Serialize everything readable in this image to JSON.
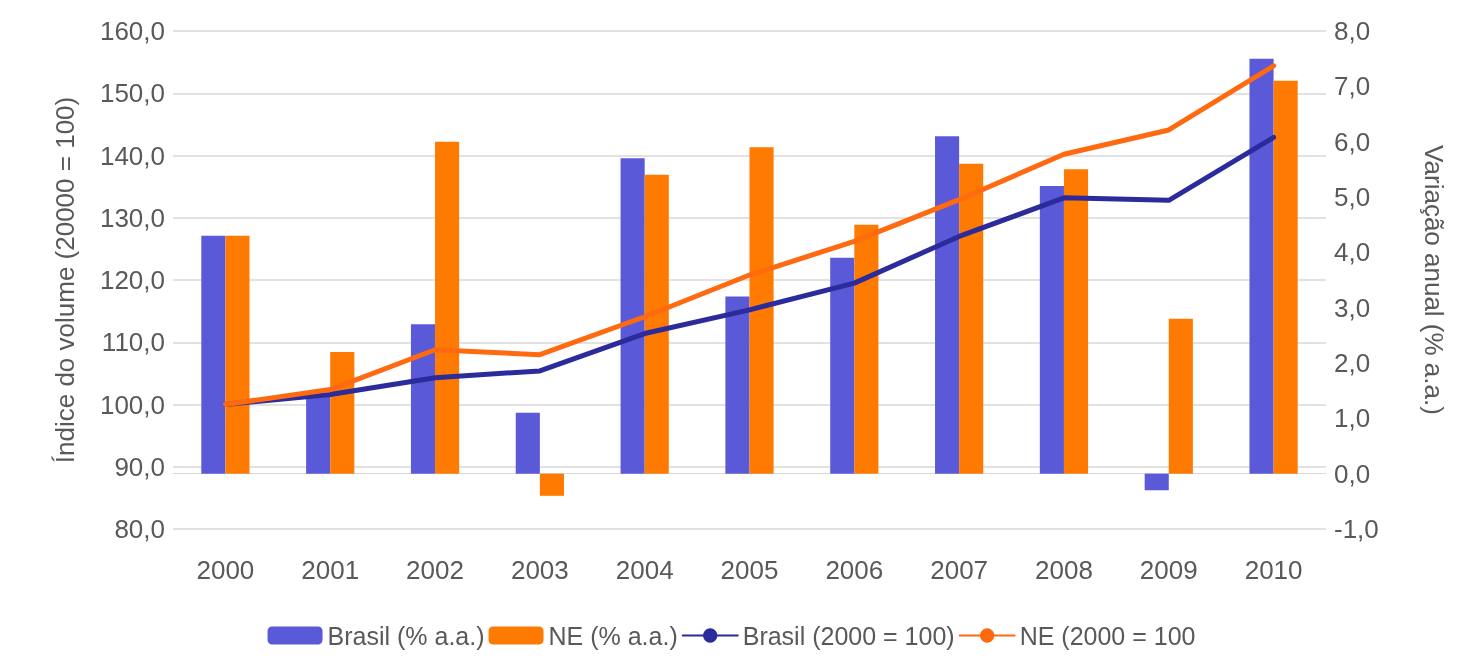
{
  "chart_data": {
    "type": "bar",
    "categories": [
      "2000",
      "2001",
      "2002",
      "2003",
      "2004",
      "2005",
      "2006",
      "2007",
      "2008",
      "2009",
      "2010"
    ],
    "series": [
      {
        "name": "Brasil (% a.a.)",
        "axis": "y2",
        "color": "#5a5ad8",
        "values": [
          4.3,
          1.4,
          2.7,
          1.1,
          5.7,
          3.2,
          3.9,
          6.1,
          5.2,
          -0.3,
          7.5
        ]
      },
      {
        "name": "NE (% a.a.)",
        "axis": "y2",
        "color": "#ff7a00",
        "values": [
          4.3,
          2.2,
          6.0,
          -0.4,
          5.4,
          5.9,
          4.5,
          5.6,
          5.5,
          2.8,
          7.1
        ]
      },
      {
        "name": "Brasil (2000 = 100)",
        "type": "line",
        "axis": "y",
        "color": "#2b2b9c",
        "values": [
          100,
          101.6,
          104.3,
          105.4,
          111.4,
          115.2,
          119.5,
          127.0,
          133.2,
          132.8,
          142.9
        ]
      },
      {
        "name": "NE (2000 = 100",
        "type": "line",
        "axis": "y",
        "color": "#ff6a10",
        "values": [
          100,
          102.4,
          108.8,
          108.0,
          114.1,
          120.8,
          126.2,
          132.9,
          140.2,
          144.1,
          154.4
        ]
      }
    ],
    "ylabel": "Índice do volume (20000 = 100)",
    "y2label": "Variação anual (% a.a.)",
    "ylim": [
      80,
      160
    ],
    "yticks": [
      {
        "value": 80,
        "label": "80,0"
      },
      {
        "value": 90,
        "label": "90,0"
      },
      {
        "value": 100,
        "label": "100,0"
      },
      {
        "value": 110,
        "label": "110,0"
      },
      {
        "value": 120,
        "label": "120,0"
      },
      {
        "value": 130,
        "label": "130,0"
      },
      {
        "value": 140,
        "label": "140,0"
      },
      {
        "value": 150,
        "label": "150,0"
      },
      {
        "value": 160,
        "label": "160,0"
      }
    ],
    "y2lim": [
      -1,
      8
    ],
    "y2ticks": [
      {
        "value": -1,
        "label": "-1,0"
      },
      {
        "value": 0,
        "label": "0,0"
      },
      {
        "value": 1,
        "label": "1,0"
      },
      {
        "value": 2,
        "label": "2,0"
      },
      {
        "value": 3,
        "label": "3,0"
      },
      {
        "value": 4,
        "label": "4,0"
      },
      {
        "value": 5,
        "label": "5,0"
      },
      {
        "value": 6,
        "label": "6,0"
      },
      {
        "value": 7,
        "label": "7,0"
      },
      {
        "value": 8,
        "label": "8,0"
      }
    ],
    "grid": "y",
    "legend": "bottom",
    "marker": "none",
    "line_style": "solid"
  }
}
